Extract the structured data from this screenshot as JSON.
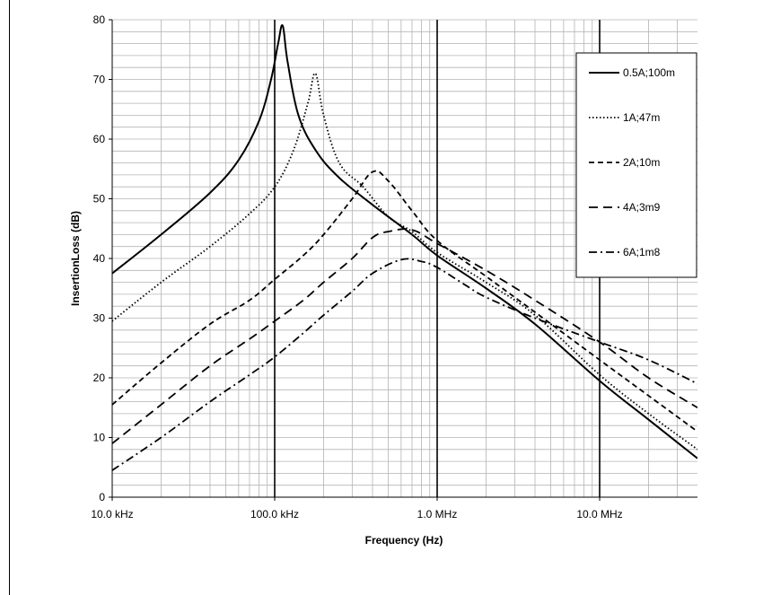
{
  "chart_data": {
    "type": "line",
    "title": "",
    "xlabel": "Frequency (Hz)",
    "ylabel": "InsertionLoss (dB)",
    "x_scale": "log",
    "xlim": [
      10000,
      40000000
    ],
    "ylim": [
      0,
      80
    ],
    "grid": true,
    "legend_position": "top-right",
    "x_ticks": [
      {
        "value": 10000,
        "label": "10.0 kHz"
      },
      {
        "value": 100000,
        "label": "100.0 kHz"
      },
      {
        "value": 1000000,
        "label": "1.0 MHz"
      },
      {
        "value": 10000000,
        "label": "10.0 MHz"
      }
    ],
    "y_ticks": [
      {
        "value": 0,
        "label": "0"
      },
      {
        "value": 10,
        "label": "10"
      },
      {
        "value": 20,
        "label": "20"
      },
      {
        "value": 30,
        "label": "30"
      },
      {
        "value": 40,
        "label": "40"
      },
      {
        "value": 50,
        "label": "50"
      },
      {
        "value": 60,
        "label": "60"
      },
      {
        "value": 70,
        "label": "70"
      },
      {
        "value": 80,
        "label": "80"
      }
    ],
    "series": [
      {
        "name": "0.5A;100m",
        "dash": "solid",
        "points": [
          [
            10000,
            37.5
          ],
          [
            20000,
            44
          ],
          [
            40000,
            51
          ],
          [
            60000,
            56.5
          ],
          [
            80000,
            63
          ],
          [
            95000,
            70
          ],
          [
            105000,
            76
          ],
          [
            112000,
            79
          ],
          [
            120000,
            73
          ],
          [
            140000,
            64
          ],
          [
            180000,
            58
          ],
          [
            250000,
            53.5
          ],
          [
            400000,
            49
          ],
          [
            700000,
            44
          ],
          [
            1000000,
            40.5
          ],
          [
            2000000,
            35
          ],
          [
            4000000,
            29
          ],
          [
            10000000,
            19.5
          ],
          [
            20000000,
            13
          ],
          [
            40000000,
            6.5
          ]
        ]
      },
      {
        "name": "1A;47m",
        "dash": "dotted",
        "points": [
          [
            10000,
            29.5
          ],
          [
            20000,
            36
          ],
          [
            40000,
            42
          ],
          [
            70000,
            47.5
          ],
          [
            100000,
            52
          ],
          [
            130000,
            58
          ],
          [
            160000,
            66
          ],
          [
            178000,
            71
          ],
          [
            200000,
            64
          ],
          [
            250000,
            56
          ],
          [
            350000,
            52
          ],
          [
            500000,
            47
          ],
          [
            700000,
            44.5
          ],
          [
            1000000,
            41
          ],
          [
            2000000,
            36
          ],
          [
            4000000,
            30.5
          ],
          [
            10000000,
            20.5
          ],
          [
            20000000,
            14
          ],
          [
            40000000,
            8
          ]
        ]
      },
      {
        "name": "2A;10m",
        "dash": "dashed",
        "points": [
          [
            10000,
            15.5
          ],
          [
            20000,
            22.5
          ],
          [
            40000,
            29
          ],
          [
            70000,
            33
          ],
          [
            100000,
            36.5
          ],
          [
            150000,
            40.5
          ],
          [
            200000,
            44
          ],
          [
            300000,
            50
          ],
          [
            400000,
            54.5
          ],
          [
            500000,
            53
          ],
          [
            700000,
            48
          ],
          [
            1000000,
            43
          ],
          [
            2000000,
            37
          ],
          [
            4000000,
            31
          ],
          [
            10000000,
            23
          ],
          [
            20000000,
            17
          ],
          [
            40000000,
            11
          ]
        ]
      },
      {
        "name": "4A;3m9",
        "dash": "long-dash",
        "points": [
          [
            10000,
            9
          ],
          [
            20000,
            15.5
          ],
          [
            40000,
            22
          ],
          [
            70000,
            26.5
          ],
          [
            100000,
            29.5
          ],
          [
            150000,
            33
          ],
          [
            200000,
            36
          ],
          [
            300000,
            40
          ],
          [
            400000,
            43.5
          ],
          [
            500000,
            44.5
          ],
          [
            700000,
            44.8
          ],
          [
            1000000,
            42.5
          ],
          [
            2000000,
            38
          ],
          [
            4000000,
            33
          ],
          [
            10000000,
            26
          ],
          [
            20000000,
            20
          ],
          [
            40000000,
            15
          ]
        ]
      },
      {
        "name": "6A;1m8",
        "dash": "dash-dot",
        "points": [
          [
            10000,
            4.5
          ],
          [
            20000,
            10
          ],
          [
            40000,
            16
          ],
          [
            70000,
            20.5
          ],
          [
            100000,
            23.5
          ],
          [
            150000,
            27.5
          ],
          [
            200000,
            30.5
          ],
          [
            300000,
            34.5
          ],
          [
            400000,
            37.5
          ],
          [
            600000,
            39.8
          ],
          [
            800000,
            39.5
          ],
          [
            1000000,
            38.5
          ],
          [
            1500000,
            35.5
          ],
          [
            2000000,
            33.5
          ],
          [
            4000000,
            30
          ],
          [
            10000000,
            26
          ],
          [
            20000000,
            23
          ],
          [
            40000000,
            19
          ]
        ]
      }
    ]
  },
  "colors": {
    "line": "#000000",
    "grid": "#b4b4b4",
    "major_grid": "#000000",
    "background": "#ffffff"
  }
}
